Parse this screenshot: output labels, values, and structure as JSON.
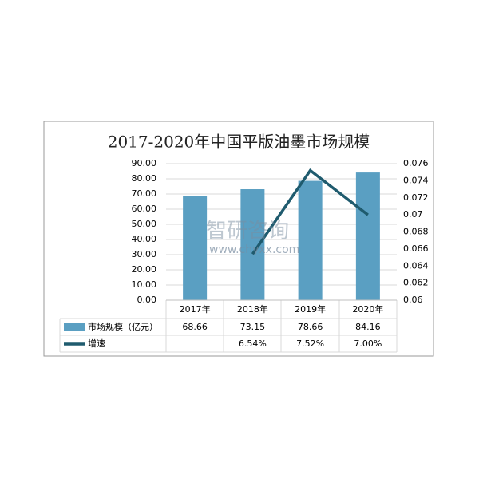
{
  "chart_data": {
    "type": "bar-line",
    "title": "2017-2020年中国平版油墨市场规模",
    "categories": [
      "2017年",
      "2018年",
      "2019年",
      "2020年"
    ],
    "series": [
      {
        "name": "市场规模（亿元）",
        "type": "bar",
        "color": "#5a9fc2",
        "values": [
          68.66,
          73.15,
          78.66,
          84.16
        ]
      },
      {
        "name": "增速",
        "type": "line",
        "axis": "y2",
        "color": "#1f5b6e",
        "values": [
          null,
          0.0654,
          0.0752,
          0.07
        ],
        "value_labels": [
          null,
          "6.54%",
          "7.52%",
          "7.00%"
        ]
      }
    ],
    "ylim": [
      0,
      90
    ],
    "yticks": [
      {
        "value": 0,
        "label": "0.00"
      },
      {
        "value": 10,
        "label": "10.00"
      },
      {
        "value": 20,
        "label": "20.00"
      },
      {
        "value": 30,
        "label": "30.00"
      },
      {
        "value": 40,
        "label": "40.00"
      },
      {
        "value": 50,
        "label": "50.00"
      },
      {
        "value": 60,
        "label": "60.00"
      },
      {
        "value": 70,
        "label": "70.00"
      },
      {
        "value": 80,
        "label": "80.00"
      },
      {
        "value": 90,
        "label": "90.00"
      }
    ],
    "y2lim": [
      0.06,
      0.076
    ],
    "y2ticks": [
      0.06,
      0.062,
      0.064,
      0.066,
      0.068,
      0.07,
      0.072,
      0.074,
      0.076
    ],
    "grid": true,
    "watermark": {
      "name": "智研咨询",
      "url": "www.chyxx.com"
    }
  }
}
